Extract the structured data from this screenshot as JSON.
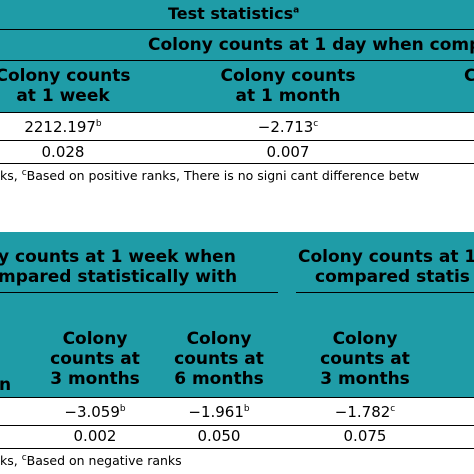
{
  "table1": {
    "title": "Test statistics",
    "title_sup": "a",
    "group_header": "Colony counts at 1 day when comp",
    "col1_line1": "Colony counts",
    "col1_line2": "at 1 week",
    "col2_line1": "Colony counts",
    "col2_line2": "at 1 month",
    "col3_partial": "C",
    "col1_value": "2212.197",
    "col1_value_sup": "b",
    "col1_p": "0.028",
    "col2_value": "−2.713",
    "col2_value_sup": "c",
    "col2_p": "0.007",
    "footnote_prefix": "ks, ",
    "footnote_sup": "c",
    "footnote_text": "Based on positive ranks, There is no signi  cant difference betw"
  },
  "table2": {
    "group1_line1": "y counts at 1 week when",
    "group1_line2": "mpared statistically with",
    "group2_line1": "Colony counts at 1",
    "group2_line2": "compared statis",
    "partial_col_line3": "n",
    "col_a_line1": "Colony",
    "col_a_line2": "counts at",
    "col_a_line3": "3 months",
    "col_b_line1": "Colony",
    "col_b_line2": "counts at",
    "col_b_line3": "6 months",
    "col_c_line1": "Colony",
    "col_c_line2": "counts at",
    "col_c_line3": "3 months",
    "col_a_value": "−3.059",
    "col_a_value_sup": "b",
    "col_a_p": "0.002",
    "col_b_value": "−1.961",
    "col_b_value_sup": "b",
    "col_b_p": "0.050",
    "col_c_value": "−1.782",
    "col_c_value_sup": "c",
    "col_c_p": "0.075",
    "footnote_prefix": "ks, ",
    "footnote_sup": "c",
    "footnote_text": "Based on negative ranks"
  },
  "colors": {
    "header_band": "#1f9ca7"
  }
}
